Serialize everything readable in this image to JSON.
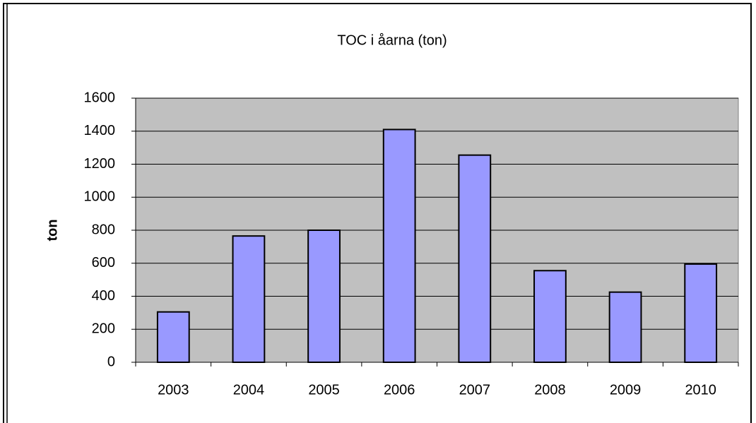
{
  "chart_data": {
    "type": "bar",
    "title": "TOC i åarna (ton)",
    "y_label": "ton",
    "categories": [
      "2003",
      "2004",
      "2005",
      "2006",
      "2007",
      "2008",
      "2009",
      "2010"
    ],
    "values": [
      305,
      765,
      800,
      1410,
      1255,
      555,
      425,
      595
    ],
    "color": "#9999ff",
    "plot_background": "#c0c0c0",
    "ylim": [
      0,
      1600
    ],
    "yticks": [
      0,
      200,
      400,
      600,
      800,
      1000,
      1200,
      1400,
      1600
    ],
    "grid": true
  }
}
